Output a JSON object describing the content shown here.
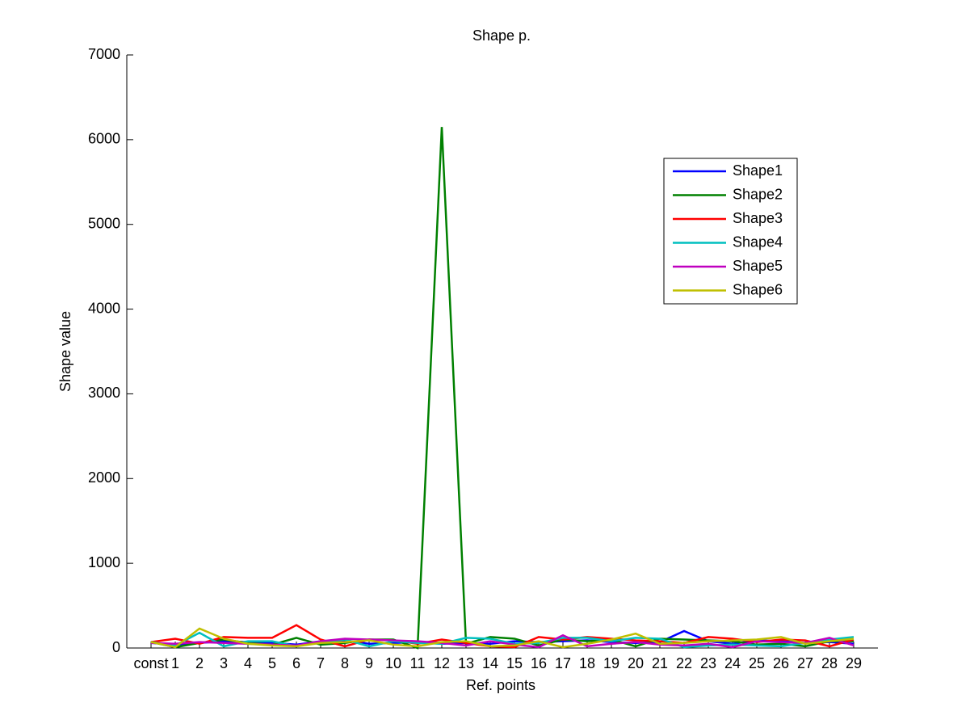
{
  "chart_data": {
    "type": "line",
    "title": "Shape p.",
    "x_label": "Ref. points",
    "y_label": "Shape value",
    "categories": [
      "const",
      "1",
      "2",
      "3",
      "4",
      "5",
      "6",
      "7",
      "8",
      "9",
      "10",
      "11",
      "12",
      "13",
      "14",
      "15",
      "16",
      "17",
      "18",
      "19",
      "20",
      "21",
      "22",
      "23",
      "24",
      "25",
      "26",
      "27",
      "28",
      "29"
    ],
    "ylim": [
      0,
      7000
    ],
    "yticks": [
      0,
      1000,
      2000,
      3000,
      4000,
      5000,
      6000,
      7000
    ],
    "series": [
      {
        "name": "Shape1",
        "color": "#0000ff",
        "values": [
          60,
          40,
          60,
          80,
          70,
          60,
          40,
          80,
          90,
          50,
          60,
          70,
          50,
          60,
          50,
          80,
          70,
          80,
          90,
          70,
          60,
          70,
          200,
          80,
          50,
          90,
          80,
          60,
          70,
          50
        ]
      },
      {
        "name": "Shape2",
        "color": "#008000",
        "values": [
          70,
          10,
          60,
          100,
          60,
          40,
          120,
          40,
          60,
          100,
          100,
          0,
          6150,
          50,
          130,
          110,
          30,
          100,
          80,
          100,
          20,
          110,
          100,
          90,
          80,
          40,
          50,
          20,
          80,
          80
        ]
      },
      {
        "name": "Shape3",
        "color": "#ff0000",
        "values": [
          70,
          110,
          50,
          130,
          120,
          120,
          270,
          100,
          20,
          100,
          90,
          50,
          100,
          60,
          20,
          10,
          130,
          100,
          130,
          110,
          90,
          80,
          60,
          130,
          110,
          70,
          100,
          90,
          20,
          100
        ]
      },
      {
        "name": "Shape4",
        "color": "#00bfbf",
        "values": [
          70,
          30,
          180,
          20,
          80,
          80,
          20,
          70,
          100,
          20,
          80,
          60,
          50,
          120,
          110,
          50,
          60,
          120,
          120,
          80,
          120,
          110,
          10,
          30,
          40,
          30,
          20,
          60,
          100,
          130
        ]
      },
      {
        "name": "Shape5",
        "color": "#bf00bf",
        "values": [
          60,
          50,
          70,
          60,
          50,
          40,
          30,
          80,
          110,
          100,
          90,
          80,
          60,
          30,
          80,
          40,
          10,
          150,
          20,
          50,
          70,
          40,
          30,
          50,
          10,
          80,
          70,
          60,
          120,
          30
        ]
      },
      {
        "name": "Shape6",
        "color": "#bfbf00",
        "values": [
          70,
          10,
          230,
          110,
          50,
          30,
          20,
          60,
          70,
          90,
          40,
          20,
          70,
          80,
          20,
          30,
          80,
          10,
          50,
          100,
          170,
          50,
          60,
          80,
          90,
          100,
          130,
          50,
          80,
          110
        ]
      }
    ]
  }
}
